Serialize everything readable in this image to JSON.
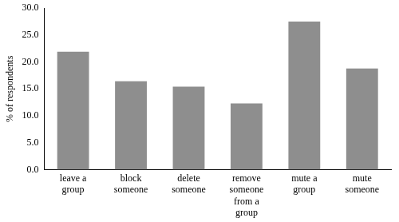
{
  "chart_data": {
    "type": "bar",
    "ylabel": "% of respondents",
    "categories": [
      "leave a group",
      "block someone",
      "delete someone",
      "remove someone from a group",
      "mute a group",
      "mute someone"
    ],
    "values": [
      21.9,
      16.4,
      15.4,
      12.3,
      27.5,
      18.8
    ],
    "color": "#8e8e8e",
    "ylim": [
      0,
      30
    ],
    "yticks": [
      {
        "value": 0,
        "label": "0.0"
      },
      {
        "value": 5,
        "label": "5.0"
      },
      {
        "value": 10,
        "label": "10.0"
      },
      {
        "value": 15,
        "label": "15.0"
      },
      {
        "value": 20,
        "label": "20.0"
      },
      {
        "value": 25,
        "label": "25.0"
      },
      {
        "value": 30,
        "label": "30.0"
      }
    ],
    "grid": false
  }
}
